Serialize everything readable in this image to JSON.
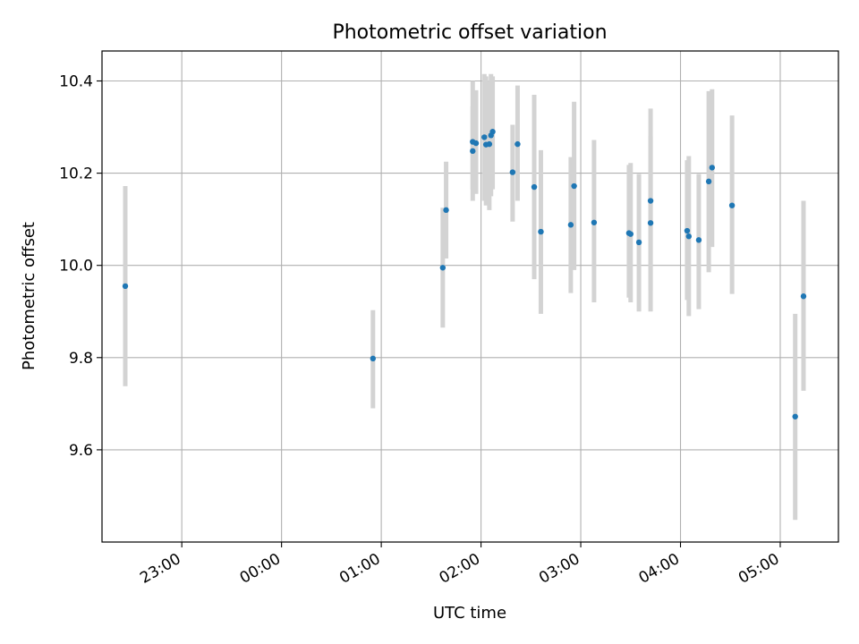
{
  "chart_data": {
    "type": "scatter",
    "title": "Photometric offset variation",
    "xlabel": "UTC time",
    "ylabel": "Photometric offset",
    "x_axis": "time",
    "x_ticks": [
      "23:00",
      "00:00",
      "01:00",
      "02:00",
      "03:00",
      "04:00",
      "05:00"
    ],
    "y_ticks": [
      "9.6",
      "9.8",
      "10.0",
      "10.2",
      "10.4"
    ],
    "xlim": [
      "22:12",
      "05:35"
    ],
    "ylim": [
      9.4,
      10.465
    ],
    "grid": true,
    "marker_color": "#1f77b4",
    "errorbar_color": "#d3d3d3",
    "series": [
      {
        "points": [
          {
            "x": "22:26",
            "y": 9.955,
            "ylow": 9.738,
            "yhigh": 10.172
          },
          {
            "x": "00:55",
            "y": 9.798,
            "ylow": 9.69,
            "yhigh": 9.903
          },
          {
            "x": "01:37",
            "y": 9.995,
            "ylow": 9.865,
            "yhigh": 10.125
          },
          {
            "x": "01:39",
            "y": 10.12,
            "ylow": 10.015,
            "yhigh": 10.225
          },
          {
            "x": "01:55",
            "y": 10.268,
            "ylow": 10.14,
            "yhigh": 10.4
          },
          {
            "x": "01:55",
            "y": 10.248,
            "ylow": 10.165,
            "yhigh": 10.345
          },
          {
            "x": "01:57",
            "y": 10.265,
            "ylow": 10.155,
            "yhigh": 10.38
          },
          {
            "x": "02:02",
            "y": 10.278,
            "ylow": 10.14,
            "yhigh": 10.415
          },
          {
            "x": "02:03",
            "y": 10.262,
            "ylow": 10.13,
            "yhigh": 10.41
          },
          {
            "x": "02:05",
            "y": 10.263,
            "ylow": 10.12,
            "yhigh": 10.4
          },
          {
            "x": "02:06",
            "y": 10.282,
            "ylow": 10.15,
            "yhigh": 10.415
          },
          {
            "x": "02:07",
            "y": 10.29,
            "ylow": 10.165,
            "yhigh": 10.41
          },
          {
            "x": "02:19",
            "y": 10.202,
            "ylow": 10.095,
            "yhigh": 10.305
          },
          {
            "x": "02:22",
            "y": 10.263,
            "ylow": 10.14,
            "yhigh": 10.39
          },
          {
            "x": "02:32",
            "y": 10.17,
            "ylow": 9.97,
            "yhigh": 10.37
          },
          {
            "x": "02:36",
            "y": 10.073,
            "ylow": 9.895,
            "yhigh": 10.25
          },
          {
            "x": "02:54",
            "y": 10.088,
            "ylow": 9.94,
            "yhigh": 10.235
          },
          {
            "x": "02:56",
            "y": 10.172,
            "ylow": 9.99,
            "yhigh": 10.355
          },
          {
            "x": "03:08",
            "y": 10.093,
            "ylow": 9.92,
            "yhigh": 10.272
          },
          {
            "x": "03:29",
            "y": 10.07,
            "ylow": 9.93,
            "yhigh": 10.218
          },
          {
            "x": "03:30",
            "y": 10.068,
            "ylow": 9.92,
            "yhigh": 10.222
          },
          {
            "x": "03:35",
            "y": 10.05,
            "ylow": 9.9,
            "yhigh": 10.198
          },
          {
            "x": "03:42",
            "y": 10.092,
            "ylow": 9.9,
            "yhigh": 10.28
          },
          {
            "x": "03:42",
            "y": 10.14,
            "ylow": 9.945,
            "yhigh": 10.34
          },
          {
            "x": "04:04",
            "y": 10.075,
            "ylow": 9.925,
            "yhigh": 10.228
          },
          {
            "x": "04:05",
            "y": 10.063,
            "ylow": 9.89,
            "yhigh": 10.237
          },
          {
            "x": "04:11",
            "y": 10.055,
            "ylow": 9.905,
            "yhigh": 10.198
          },
          {
            "x": "04:17",
            "y": 10.182,
            "ylow": 9.985,
            "yhigh": 10.378
          },
          {
            "x": "04:19",
            "y": 10.212,
            "ylow": 10.04,
            "yhigh": 10.382
          },
          {
            "x": "04:31",
            "y": 10.13,
            "ylow": 9.938,
            "yhigh": 10.325
          },
          {
            "x": "05:09",
            "y": 9.672,
            "ylow": 9.448,
            "yhigh": 9.895
          },
          {
            "x": "05:14",
            "y": 9.933,
            "ylow": 9.728,
            "yhigh": 10.14
          }
        ]
      }
    ]
  }
}
